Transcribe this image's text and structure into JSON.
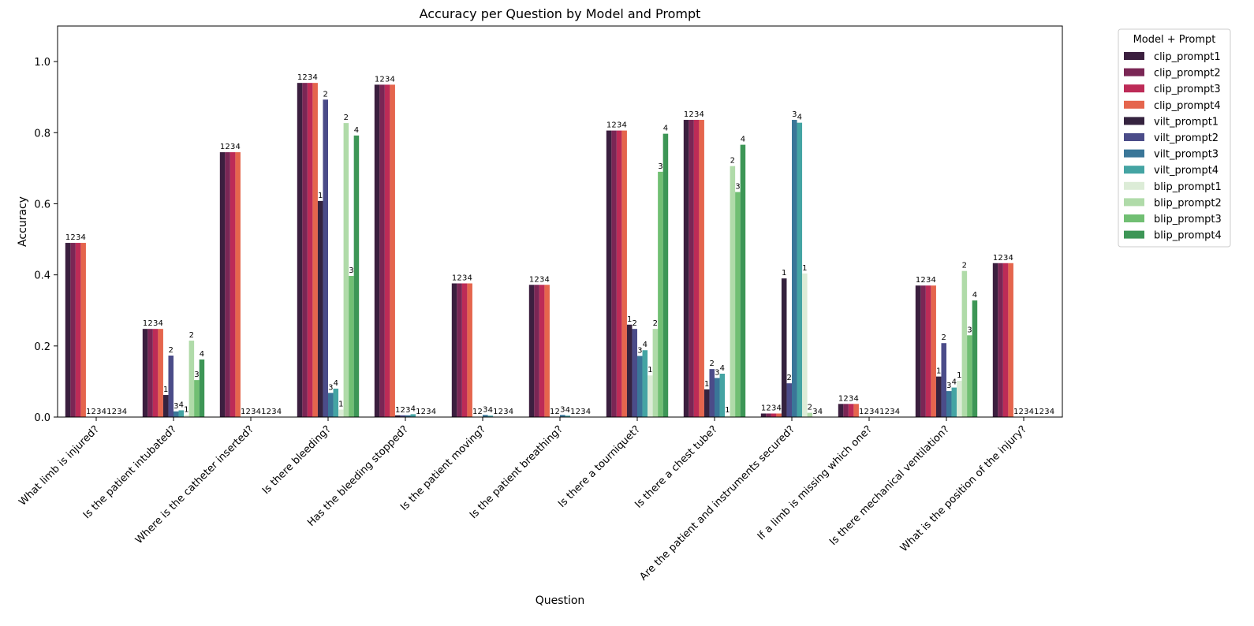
{
  "chart_data": {
    "type": "bar",
    "title": "Accuracy per Question by Model and Prompt",
    "xlabel": "Question",
    "ylabel": "Accuracy",
    "ylim": [
      0,
      1.1
    ],
    "yticks": [
      "0.0",
      "0.2",
      "0.4",
      "0.6",
      "0.8",
      "1.0"
    ],
    "grid": false,
    "legend": {
      "title": "Model + Prompt",
      "placement": "outside-top-right"
    },
    "categories": [
      "What limb is injured?",
      "Is the patient intubated?",
      "Where is the catheter inserted?",
      "Is there bleeding?",
      "Has the bleeding stopped?",
      "Is the patient moving?",
      "Is the patient breathing?",
      "Is there a tourniquet?",
      "Is there a chest tube?",
      "Are the patient and instruments secured?",
      "If a limb is missing which one?",
      "Is there mechanical ventilation?",
      "What is the position of the injury?"
    ],
    "series": [
      {
        "name": "clip_prompt1",
        "label": "1",
        "color": "#3b1f3f",
        "values": [
          0.49,
          0.248,
          0.745,
          0.94,
          0.935,
          0.376,
          0.372,
          0.806,
          0.836,
          0.01,
          0.037,
          0.37,
          0.433
        ]
      },
      {
        "name": "clip_prompt2",
        "label": "2",
        "color": "#7a2655",
        "values": [
          0.49,
          0.248,
          0.745,
          0.94,
          0.935,
          0.376,
          0.372,
          0.806,
          0.836,
          0.01,
          0.037,
          0.37,
          0.433
        ]
      },
      {
        "name": "clip_prompt3",
        "label": "3",
        "color": "#bd2b57",
        "values": [
          0.49,
          0.248,
          0.745,
          0.94,
          0.935,
          0.376,
          0.372,
          0.806,
          0.836,
          0.01,
          0.037,
          0.37,
          0.433
        ]
      },
      {
        "name": "clip_prompt4",
        "label": "4",
        "color": "#e5654d",
        "values": [
          0.49,
          0.248,
          0.745,
          0.94,
          0.935,
          0.376,
          0.372,
          0.806,
          0.836,
          0.01,
          0.037,
          0.37,
          0.433
        ]
      },
      {
        "name": "vilt_prompt1",
        "label": "1",
        "color": "#35233f",
        "values": [
          0.0,
          0.062,
          0.0,
          0.608,
          0.005,
          0.0,
          0.0,
          0.26,
          0.078,
          0.39,
          0.0,
          0.114,
          0.0
        ]
      },
      {
        "name": "vilt_prompt2",
        "label": "2",
        "color": "#4b4c89",
        "values": [
          0.0,
          0.173,
          0.0,
          0.893,
          0.005,
          0.0,
          0.0,
          0.248,
          0.135,
          0.095,
          0.0,
          0.208,
          0.0
        ]
      },
      {
        "name": "vilt_prompt3",
        "label": "3",
        "color": "#3a7698",
        "values": [
          0.0,
          0.016,
          0.0,
          0.068,
          0.005,
          0.006,
          0.006,
          0.172,
          0.11,
          0.836,
          0.0,
          0.073,
          0.0
        ]
      },
      {
        "name": "vilt_prompt4",
        "label": "4",
        "color": "#44a4a3",
        "values": [
          0.0,
          0.019,
          0.0,
          0.08,
          0.008,
          0.004,
          0.004,
          0.188,
          0.122,
          0.828,
          0.0,
          0.083,
          0.0
        ]
      },
      {
        "name": "blip_prompt1",
        "label": "1",
        "color": "#dcecd7",
        "values": [
          0.0,
          0.006,
          0.0,
          0.021,
          0.0,
          0.0,
          0.0,
          0.117,
          0.004,
          0.404,
          0.0,
          0.102,
          0.0
        ]
      },
      {
        "name": "blip_prompt2",
        "label": "2",
        "color": "#b0dba9",
        "values": [
          0.0,
          0.215,
          0.0,
          0.827,
          0.0,
          0.0,
          0.0,
          0.248,
          0.706,
          0.012,
          0.0,
          0.411,
          0.0
        ]
      },
      {
        "name": "blip_prompt3",
        "label": "3",
        "color": "#71bf73",
        "values": [
          0.0,
          0.104,
          0.0,
          0.397,
          0.0,
          0.0,
          0.0,
          0.69,
          0.633,
          0.0,
          0.0,
          0.23,
          0.0
        ]
      },
      {
        "name": "blip_prompt4",
        "label": "4",
        "color": "#3d9656",
        "values": [
          0.0,
          0.162,
          0.0,
          0.792,
          0.0,
          0.0,
          0.0,
          0.797,
          0.766,
          0.0,
          0.0,
          0.328,
          0.0
        ]
      }
    ]
  }
}
